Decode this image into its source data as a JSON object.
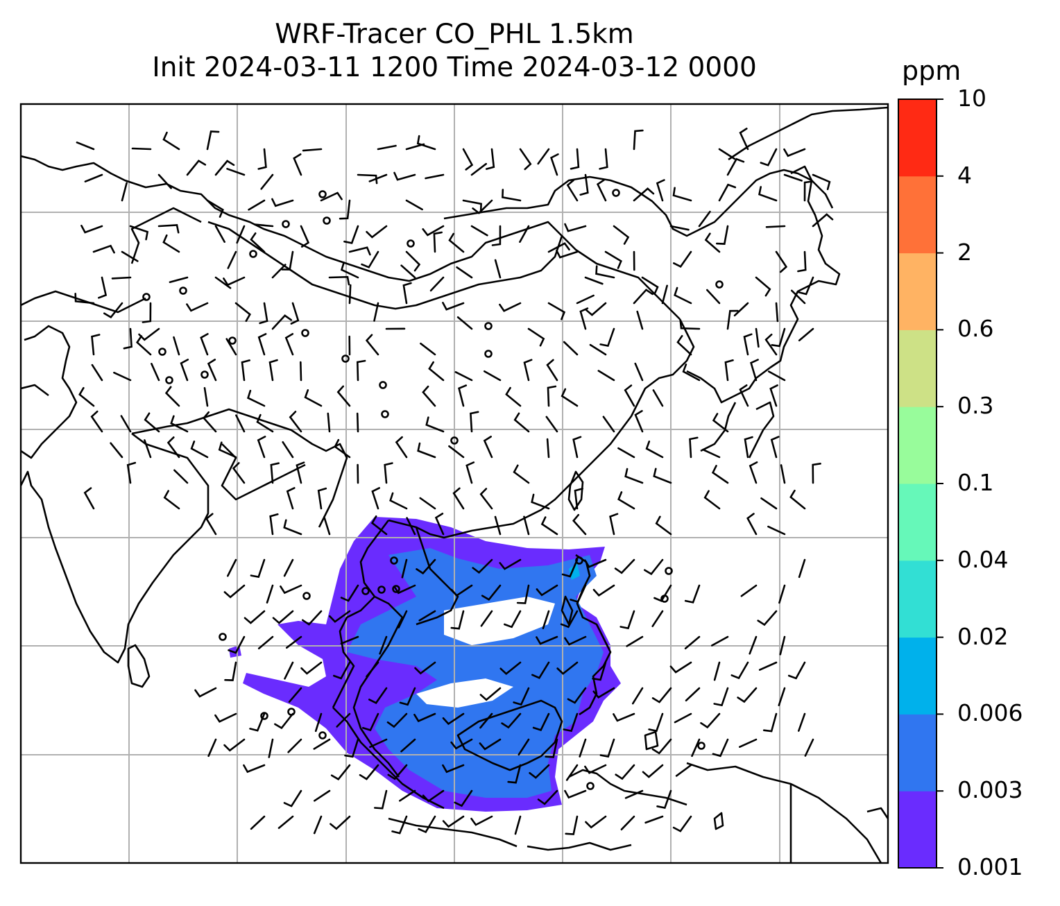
{
  "title": {
    "line1": "WRF-Tracer CO_PHL 1.5km",
    "line2": "Init 2024-03-11 1200 Time 2024-03-12 0000"
  },
  "colorbar": {
    "unit": "ppm",
    "levels": [
      "0.001",
      "0.003",
      "0.006",
      "0.02",
      "0.04",
      "0.1",
      "0.3",
      "0.6",
      "2",
      "4",
      "10"
    ],
    "colors": [
      "#6a2cfe",
      "#3076f0",
      "#00b1eb",
      "#32dfd4",
      "#66f8b9",
      "#98fc9b",
      "#cde186",
      "#ffb363",
      "#ff7138",
      "#ff2a14"
    ]
  },
  "map": {
    "frame_color": "#000000",
    "grid_color": "#b0b0b0",
    "coastline_color": "#000000",
    "wind_barb_color": "#000000"
  }
}
